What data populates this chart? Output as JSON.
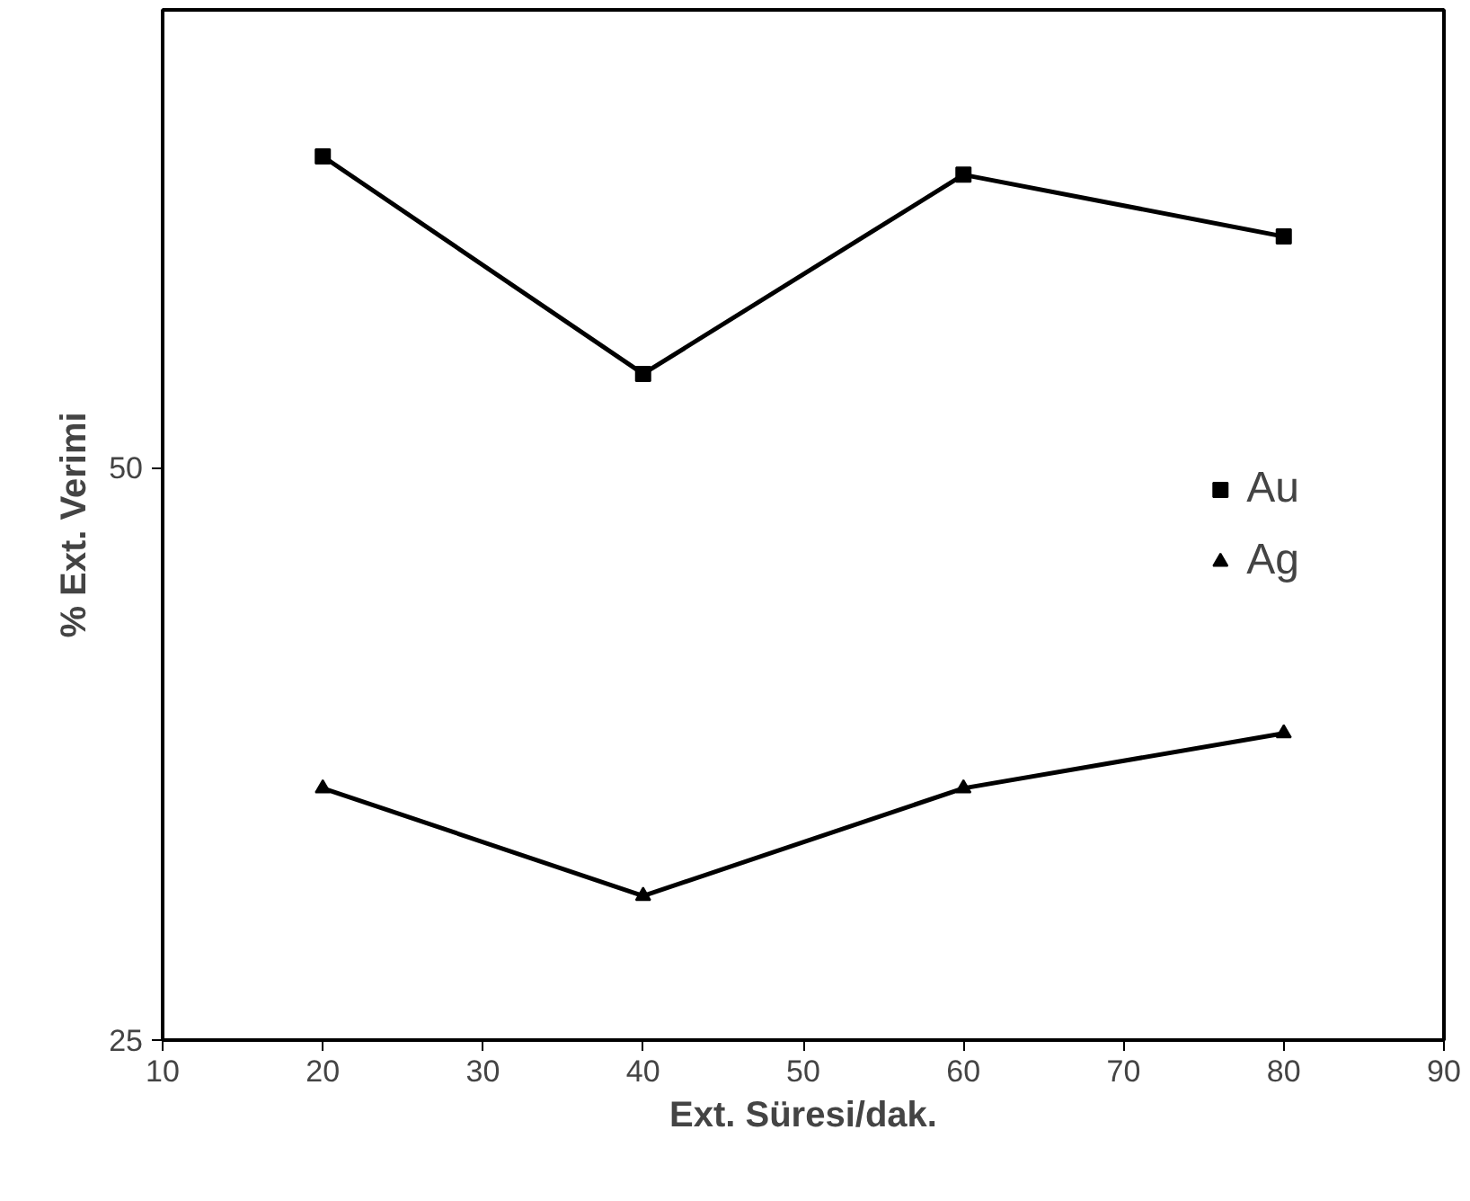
{
  "chart_data": {
    "type": "line",
    "xlabel": "Ext. Süresi/dak.",
    "ylabel": "% Ext. Verimi",
    "x": [
      20,
      40,
      60,
      80
    ],
    "series": [
      {
        "name": "Au",
        "color": "#000000",
        "marker": "square",
        "values": [
          63.6,
          54.1,
          62.8,
          60.1
        ]
      },
      {
        "name": "Ag",
        "color": "#000000",
        "marker": "triangle",
        "values": [
          36.0,
          31.3,
          36.0,
          38.4
        ]
      }
    ],
    "xlim": [
      10,
      90
    ],
    "xticks": [
      10,
      20,
      30,
      40,
      50,
      60,
      70,
      80,
      90
    ],
    "ylim": [
      25,
      70
    ],
    "yticks": [
      25,
      50
    ],
    "grid": false,
    "legend": "right",
    "line_style": "solid"
  }
}
